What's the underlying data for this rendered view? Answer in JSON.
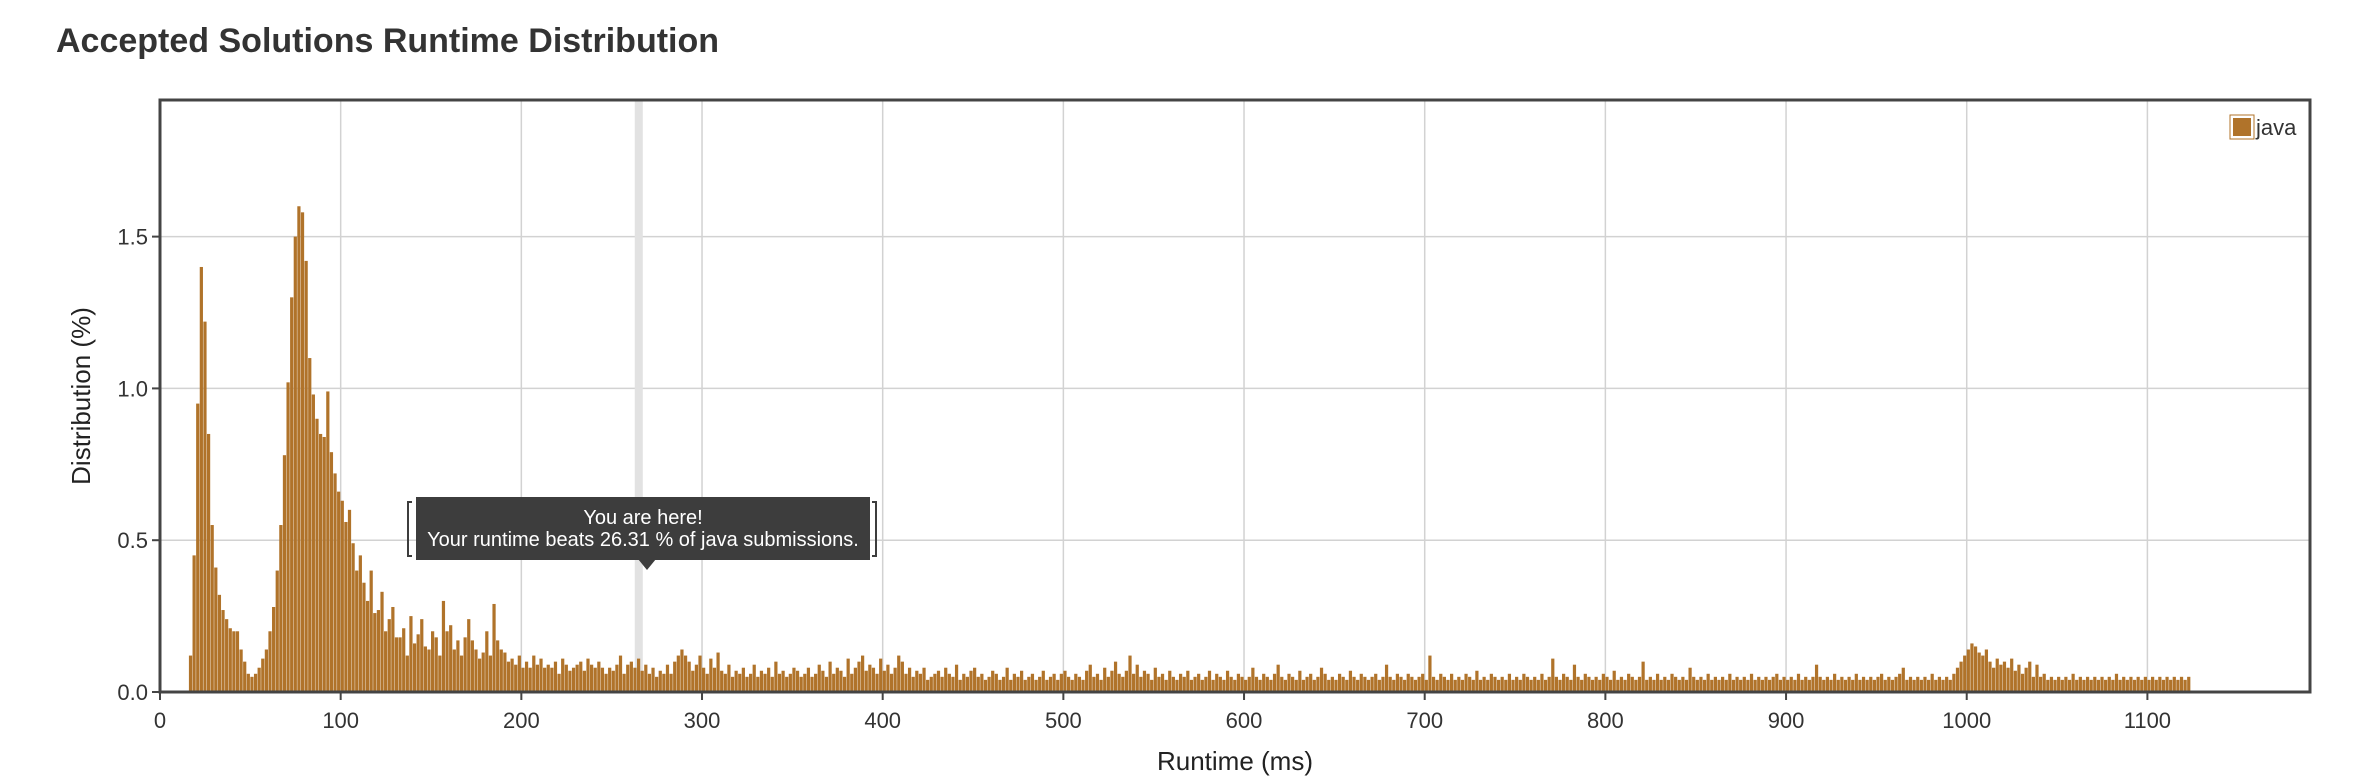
{
  "page": {
    "title": "Accepted Solutions Runtime Distribution"
  },
  "colors": {
    "bar": "#b0732a",
    "grid": "#d2d2d2",
    "frame": "#444444",
    "highlight": "#e2e2e2",
    "tooltip_bg": "#3d3d3d",
    "tooltip_text": "#ffffff"
  },
  "tooltip": {
    "line1": "You are here!",
    "line2": "Your runtime beats 26.31 % of java submissions."
  },
  "chart_data": {
    "type": "bar",
    "title": "Accepted Solutions Runtime Distribution",
    "xlabel": "Runtime (ms)",
    "ylabel": "Distribution (%)",
    "xlim": [
      0,
      1190
    ],
    "ylim": [
      0,
      1.95
    ],
    "x_ticks": [
      "0",
      "100",
      "200",
      "300",
      "400",
      "500",
      "600",
      "700",
      "800",
      "900",
      "1000",
      "1100"
    ],
    "y_ticks": [
      "0.0",
      "0.5",
      "1.0",
      "1.5"
    ],
    "grid": true,
    "legend": {
      "position": "top-right",
      "entries": [
        "java"
      ]
    },
    "highlight_x": 265,
    "series": [
      {
        "name": "java",
        "bin_start": 16,
        "bin_width": 2,
        "values": [
          0.12,
          0.45,
          0.95,
          1.4,
          1.22,
          0.85,
          0.55,
          0.41,
          0.32,
          0.27,
          0.24,
          0.21,
          0.2,
          0.2,
          0.14,
          0.1,
          0.06,
          0.05,
          0.06,
          0.08,
          0.11,
          0.14,
          0.2,
          0.28,
          0.4,
          0.55,
          0.78,
          1.02,
          1.3,
          1.5,
          1.6,
          1.58,
          1.42,
          1.1,
          0.98,
          0.9,
          0.85,
          0.84,
          0.99,
          0.79,
          0.72,
          0.66,
          0.63,
          0.56,
          0.6,
          0.49,
          0.4,
          0.45,
          0.36,
          0.3,
          0.4,
          0.26,
          0.27,
          0.33,
          0.2,
          0.24,
          0.28,
          0.18,
          0.18,
          0.21,
          0.12,
          0.25,
          0.16,
          0.19,
          0.24,
          0.15,
          0.14,
          0.2,
          0.18,
          0.12,
          0.3,
          0.2,
          0.22,
          0.14,
          0.17,
          0.12,
          0.18,
          0.24,
          0.17,
          0.14,
          0.11,
          0.13,
          0.2,
          0.12,
          0.29,
          0.17,
          0.14,
          0.13,
          0.1,
          0.11,
          0.09,
          0.12,
          0.08,
          0.1,
          0.08,
          0.12,
          0.09,
          0.11,
          0.08,
          0.09,
          0.08,
          0.1,
          0.06,
          0.11,
          0.09,
          0.07,
          0.08,
          0.09,
          0.1,
          0.07,
          0.11,
          0.09,
          0.08,
          0.1,
          0.08,
          0.06,
          0.08,
          0.07,
          0.09,
          0.12,
          0.06,
          0.09,
          0.1,
          0.08,
          0.11,
          0.07,
          0.09,
          0.06,
          0.08,
          0.05,
          0.07,
          0.06,
          0.09,
          0.06,
          0.1,
          0.12,
          0.14,
          0.12,
          0.1,
          0.07,
          0.09,
          0.12,
          0.08,
          0.06,
          0.11,
          0.08,
          0.13,
          0.07,
          0.06,
          0.09,
          0.05,
          0.07,
          0.06,
          0.08,
          0.05,
          0.06,
          0.09,
          0.05,
          0.07,
          0.06,
          0.08,
          0.05,
          0.1,
          0.06,
          0.07,
          0.05,
          0.06,
          0.08,
          0.07,
          0.05,
          0.06,
          0.08,
          0.05,
          0.06,
          0.09,
          0.07,
          0.05,
          0.1,
          0.06,
          0.08,
          0.07,
          0.05,
          0.11,
          0.06,
          0.08,
          0.1,
          0.12,
          0.07,
          0.09,
          0.08,
          0.06,
          0.11,
          0.07,
          0.09,
          0.06,
          0.08,
          0.12,
          0.1,
          0.06,
          0.08,
          0.05,
          0.07,
          0.06,
          0.08,
          0.04,
          0.05,
          0.06,
          0.07,
          0.05,
          0.08,
          0.06,
          0.05,
          0.09,
          0.04,
          0.06,
          0.05,
          0.07,
          0.08,
          0.05,
          0.06,
          0.04,
          0.05,
          0.07,
          0.06,
          0.04,
          0.05,
          0.08,
          0.04,
          0.06,
          0.05,
          0.07,
          0.04,
          0.05,
          0.06,
          0.04,
          0.05,
          0.07,
          0.04,
          0.05,
          0.06,
          0.04,
          0.06,
          0.07,
          0.05,
          0.04,
          0.06,
          0.05,
          0.04,
          0.07,
          0.09,
          0.05,
          0.06,
          0.04,
          0.08,
          0.05,
          0.07,
          0.1,
          0.06,
          0.05,
          0.07,
          0.12,
          0.06,
          0.09,
          0.05,
          0.07,
          0.06,
          0.04,
          0.08,
          0.05,
          0.06,
          0.04,
          0.07,
          0.05,
          0.04,
          0.06,
          0.05,
          0.07,
          0.04,
          0.05,
          0.06,
          0.04,
          0.05,
          0.07,
          0.04,
          0.06,
          0.05,
          0.04,
          0.07,
          0.05,
          0.04,
          0.06,
          0.05,
          0.04,
          0.05,
          0.08,
          0.05,
          0.04,
          0.06,
          0.05,
          0.04,
          0.06,
          0.09,
          0.05,
          0.04,
          0.06,
          0.05,
          0.04,
          0.07,
          0.04,
          0.05,
          0.06,
          0.04,
          0.05,
          0.08,
          0.06,
          0.04,
          0.05,
          0.04,
          0.06,
          0.05,
          0.04,
          0.07,
          0.05,
          0.04,
          0.06,
          0.05,
          0.04,
          0.05,
          0.06,
          0.04,
          0.05,
          0.09,
          0.05,
          0.04,
          0.06,
          0.05,
          0.04,
          0.06,
          0.05,
          0.04,
          0.05,
          0.06,
          0.04,
          0.12,
          0.05,
          0.04,
          0.06,
          0.05,
          0.04,
          0.06,
          0.04,
          0.05,
          0.04,
          0.06,
          0.05,
          0.04,
          0.07,
          0.04,
          0.05,
          0.04,
          0.06,
          0.05,
          0.04,
          0.05,
          0.04,
          0.06,
          0.04,
          0.05,
          0.04,
          0.06,
          0.05,
          0.04,
          0.05,
          0.04,
          0.06,
          0.04,
          0.05,
          0.11,
          0.05,
          0.04,
          0.06,
          0.05,
          0.04,
          0.09,
          0.05,
          0.04,
          0.06,
          0.05,
          0.04,
          0.05,
          0.04,
          0.06,
          0.05,
          0.04,
          0.07,
          0.04,
          0.05,
          0.04,
          0.06,
          0.05,
          0.04,
          0.05,
          0.1,
          0.04,
          0.05,
          0.04,
          0.06,
          0.04,
          0.05,
          0.04,
          0.06,
          0.05,
          0.04,
          0.05,
          0.04,
          0.08,
          0.05,
          0.04,
          0.05,
          0.04,
          0.06,
          0.04,
          0.05,
          0.04,
          0.05,
          0.04,
          0.06,
          0.04,
          0.05,
          0.04,
          0.05,
          0.04,
          0.06,
          0.04,
          0.05,
          0.04,
          0.05,
          0.04,
          0.05,
          0.06,
          0.04,
          0.05,
          0.04,
          0.05,
          0.04,
          0.06,
          0.04,
          0.05,
          0.04,
          0.05,
          0.09,
          0.05,
          0.04,
          0.05,
          0.04,
          0.06,
          0.04,
          0.05,
          0.04,
          0.05,
          0.04,
          0.06,
          0.04,
          0.05,
          0.04,
          0.05,
          0.04,
          0.05,
          0.06,
          0.04,
          0.05,
          0.04,
          0.05,
          0.06,
          0.08,
          0.04,
          0.05,
          0.04,
          0.05,
          0.04,
          0.05,
          0.04,
          0.06,
          0.04,
          0.05,
          0.04,
          0.05,
          0.04,
          0.06,
          0.08,
          0.1,
          0.12,
          0.14,
          0.16,
          0.15,
          0.13,
          0.12,
          0.14,
          0.1,
          0.08,
          0.11,
          0.09,
          0.1,
          0.08,
          0.11,
          0.07,
          0.09,
          0.06,
          0.08,
          0.1,
          0.05,
          0.09,
          0.05,
          0.06,
          0.04,
          0.05,
          0.04,
          0.05,
          0.04,
          0.05,
          0.04,
          0.06,
          0.04,
          0.05,
          0.04,
          0.05,
          0.04,
          0.05,
          0.04,
          0.05,
          0.04,
          0.05,
          0.04,
          0.06,
          0.04,
          0.05,
          0.04,
          0.05,
          0.04,
          0.05,
          0.04,
          0.05,
          0.04,
          0.05,
          0.04,
          0.05,
          0.04,
          0.05,
          0.04,
          0.05,
          0.04,
          0.05,
          0.04,
          0.05
        ]
      }
    ]
  }
}
